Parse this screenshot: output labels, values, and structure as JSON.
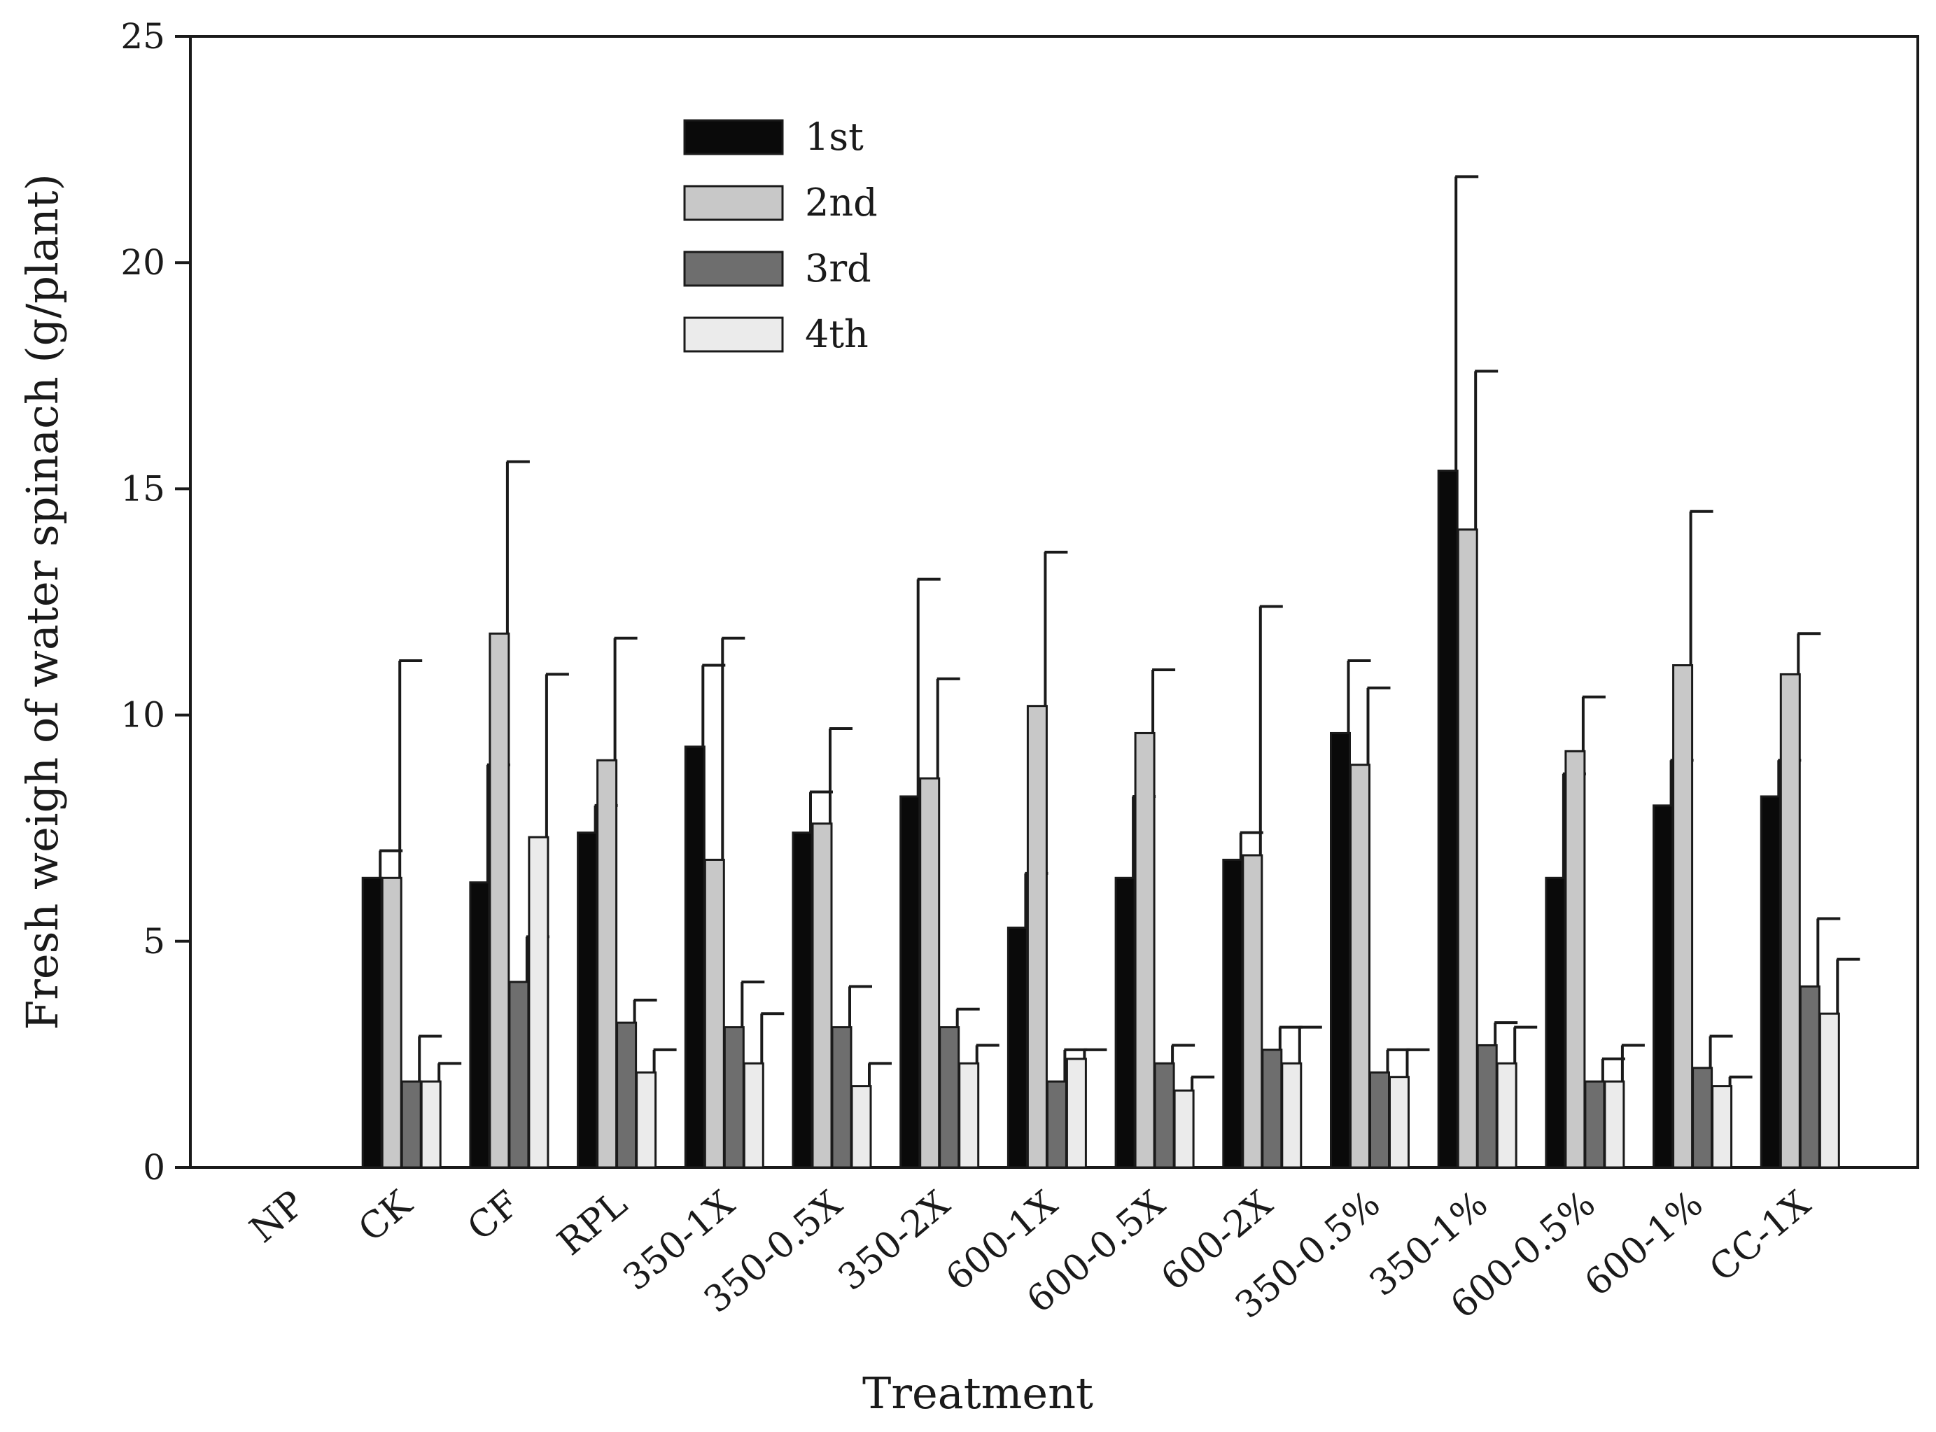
{
  "chart_data": {
    "type": "bar",
    "title": "",
    "xlabel": "Treatment",
    "ylabel": "Fresh weigh of water spinach (g/plant)",
    "ylim": [
      0,
      25
    ],
    "yticks": [
      0,
      5,
      10,
      15,
      20,
      25
    ],
    "legend_position": "top-left",
    "grid": false,
    "categories": [
      "NP",
      "CK",
      "CF",
      "RPL",
      "350-1X",
      "350-0.5X",
      "350-2X",
      "600-1X",
      "600-0.5X",
      "600-2X",
      "350-0.5%",
      "350-1%",
      "600-0.5%",
      "600-1%",
      "CC-1X"
    ],
    "series": [
      {
        "name": "1st",
        "color": "#0a0a0a",
        "values": [
          0,
          6.4,
          6.3,
          7.4,
          9.3,
          7.4,
          8.2,
          5.3,
          6.4,
          6.8,
          9.6,
          15.4,
          6.4,
          8.0,
          8.2
        ],
        "errors": [
          0,
          0.6,
          2.6,
          0.6,
          1.8,
          0.9,
          4.8,
          1.2,
          1.8,
          0.6,
          1.6,
          6.5,
          2.3,
          1.0,
          0.8
        ]
      },
      {
        "name": "2nd",
        "color": "#c8c8c8",
        "values": [
          0,
          6.4,
          11.8,
          9.0,
          6.8,
          7.6,
          8.6,
          10.2,
          9.6,
          6.9,
          8.9,
          14.1,
          9.2,
          11.1,
          10.9
        ],
        "errors": [
          0,
          4.8,
          3.8,
          2.7,
          4.9,
          2.1,
          2.2,
          3.4,
          1.4,
          5.5,
          1.7,
          3.5,
          1.2,
          3.4,
          0.9
        ]
      },
      {
        "name": "3rd",
        "color": "#6e6e6e",
        "values": [
          0,
          1.9,
          4.1,
          3.2,
          3.1,
          3.1,
          3.1,
          1.9,
          2.3,
          2.6,
          2.1,
          2.7,
          1.9,
          2.2,
          4.0
        ],
        "errors": [
          0,
          1.0,
          1.0,
          0.5,
          1.0,
          0.9,
          0.4,
          0.7,
          0.4,
          0.5,
          0.5,
          0.5,
          0.5,
          0.7,
          1.5
        ]
      },
      {
        "name": "4th",
        "color": "#ebebeb",
        "values": [
          0,
          1.9,
          7.3,
          2.1,
          2.3,
          1.8,
          2.3,
          2.4,
          1.7,
          2.3,
          2.0,
          2.3,
          1.9,
          1.8,
          3.4
        ],
        "errors": [
          0,
          0.4,
          3.6,
          0.5,
          1.1,
          0.5,
          0.4,
          0.2,
          0.3,
          0.8,
          0.6,
          0.8,
          0.8,
          0.2,
          1.2
        ]
      }
    ]
  }
}
